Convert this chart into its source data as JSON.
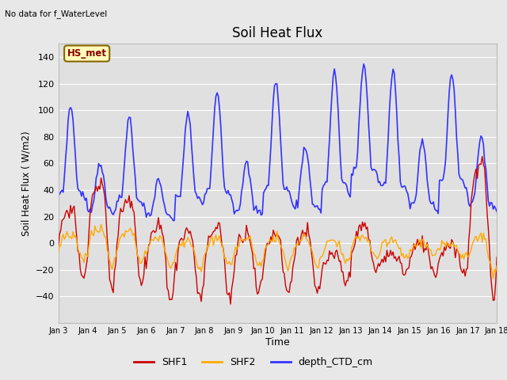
{
  "title": "Soil Heat Flux",
  "top_left_text": "No data for f_WaterLevel",
  "xlabel": "Time",
  "ylabel": "Soil Heat Flux ( W/m2)",
  "ylim": [
    -60,
    150
  ],
  "yticks": [
    -40,
    -20,
    0,
    20,
    40,
    60,
    80,
    100,
    120,
    140
  ],
  "xtick_labels": [
    "Jan 3",
    "Jan 4",
    "Jan 5",
    "Jan 6",
    "Jan 7",
    "Jan 8",
    "Jan 9",
    "Jan 10",
    "Jan 11",
    "Jan 12",
    "Jan 13",
    "Jan 14",
    "Jan 15",
    "Jan 16",
    "Jan 17",
    "Jan 18"
  ],
  "shf1_color": "#cc0000",
  "shf2_color": "#ffaa00",
  "depth_color": "#3333ff",
  "bg_color": "#e8e8e8",
  "plot_bg_color": "#e0e0e0",
  "annotation_box_color": "#ffffbb",
  "annotation_box_edge": "#886600",
  "annotation_text": "HS_met",
  "annotation_text_color": "#880000",
  "legend_labels": [
    "SHF1",
    "SHF2",
    "depth_CTD_cm"
  ],
  "n_days": 15,
  "pts_per_day": 24
}
